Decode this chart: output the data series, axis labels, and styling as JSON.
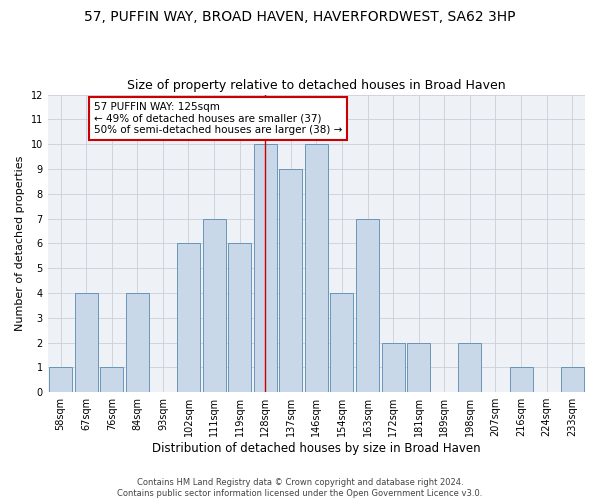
{
  "title": "57, PUFFIN WAY, BROAD HAVEN, HAVERFORDWEST, SA62 3HP",
  "subtitle": "Size of property relative to detached houses in Broad Haven",
  "xlabel": "Distribution of detached houses by size in Broad Haven",
  "ylabel": "Number of detached properties",
  "categories": [
    "58sqm",
    "67sqm",
    "76sqm",
    "84sqm",
    "93sqm",
    "102sqm",
    "111sqm",
    "119sqm",
    "128sqm",
    "137sqm",
    "146sqm",
    "154sqm",
    "163sqm",
    "172sqm",
    "181sqm",
    "189sqm",
    "198sqm",
    "207sqm",
    "216sqm",
    "224sqm",
    "233sqm"
  ],
  "values": [
    1,
    4,
    1,
    4,
    0,
    6,
    7,
    6,
    10,
    9,
    10,
    4,
    7,
    2,
    2,
    0,
    2,
    0,
    1,
    0,
    1
  ],
  "bar_color": "#c8d8e8",
  "bar_edge_color": "#5a8ab0",
  "red_line_index": 8,
  "annotation_text": "57 PUFFIN WAY: 125sqm\n← 49% of detached houses are smaller (37)\n50% of semi-detached houses are larger (38) →",
  "annotation_box_color": "#ffffff",
  "annotation_border_color": "#cc0000",
  "ylim": [
    0,
    12
  ],
  "yticks": [
    0,
    1,
    2,
    3,
    4,
    5,
    6,
    7,
    8,
    9,
    10,
    11,
    12
  ],
  "footer_line1": "Contains HM Land Registry data © Crown copyright and database right 2024.",
  "footer_line2": "Contains public sector information licensed under the Open Government Licence v3.0.",
  "bg_color": "#eef2f7",
  "grid_color": "#c8d0da",
  "title_fontsize": 10,
  "subtitle_fontsize": 9,
  "xlabel_fontsize": 8.5,
  "ylabel_fontsize": 8,
  "tick_fontsize": 7,
  "annotation_fontsize": 7.5,
  "footer_fontsize": 6
}
